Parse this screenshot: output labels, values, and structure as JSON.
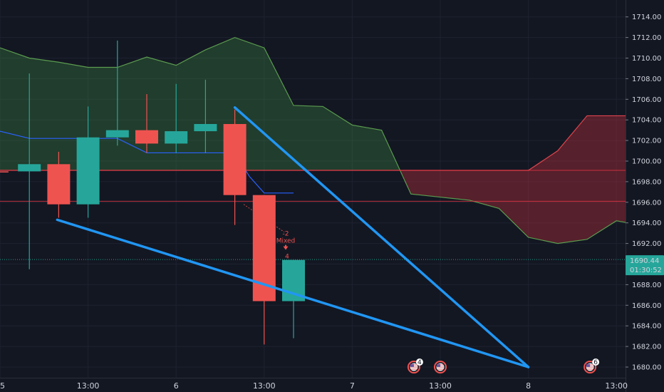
{
  "chart_data": {
    "type": "candlestick",
    "ylim": [
      1678.5,
      1715.8
    ],
    "y_ticks": [
      "1680.00",
      "1682.00",
      "1684.00",
      "1686.00",
      "1688.00",
      "1690.00",
      "1692.00",
      "1694.00",
      "1696.00",
      "1698.00",
      "1700.00",
      "1702.00",
      "1704.00",
      "1706.00",
      "1708.00",
      "1710.00",
      "1712.00",
      "1714.00"
    ],
    "x_ticks": [
      {
        "label": "5",
        "t": 0
      },
      {
        "label": "13:00",
        "t": 3
      },
      {
        "label": "6",
        "t": 6
      },
      {
        "label": "13:00",
        "t": 9
      },
      {
        "label": "7",
        "t": 12
      },
      {
        "label": "13:00",
        "t": 15
      },
      {
        "label": "8",
        "t": 18
      },
      {
        "label": "13:00",
        "t": 21
      }
    ],
    "x_range": [
      0,
      21.4
    ],
    "candles": [
      {
        "t": -0.1,
        "o": 1699.0,
        "h": 1700.5,
        "l": 1696.5,
        "c": 1698.9
      },
      {
        "t": 1,
        "o": 1699.0,
        "h": 1708.5,
        "l": 1689.5,
        "c": 1699.7
      },
      {
        "t": 2,
        "o": 1699.7,
        "h": 1700.9,
        "l": 1694.5,
        "c": 1695.8
      },
      {
        "t": 3,
        "o": 1695.8,
        "h": 1705.3,
        "l": 1694.5,
        "c": 1702.3
      },
      {
        "t": 4,
        "o": 1702.3,
        "h": 1711.7,
        "l": 1701.5,
        "c": 1703.0
      },
      {
        "t": 5,
        "o": 1703.0,
        "h": 1706.5,
        "l": 1700.8,
        "c": 1701.7
      },
      {
        "t": 6,
        "o": 1701.7,
        "h": 1707.5,
        "l": 1700.8,
        "c": 1702.9
      },
      {
        "t": 7,
        "o": 1702.9,
        "h": 1707.9,
        "l": 1700.8,
        "c": 1703.6
      },
      {
        "t": 8,
        "o": 1703.6,
        "h": 1705.0,
        "l": 1693.8,
        "c": 1696.7
      },
      {
        "t": 9,
        "o": 1696.7,
        "h": 1696.7,
        "l": 1682.2,
        "c": 1686.4
      },
      {
        "t": 10,
        "o": 1686.4,
        "h": 1690.4,
        "l": 1682.8,
        "c": 1690.4
      }
    ],
    "ichimoku_span_a": [
      {
        "t": 0,
        "v": 1711.0
      },
      {
        "t": 1,
        "v": 1710.0
      },
      {
        "t": 2,
        "v": 1709.6
      },
      {
        "t": 3,
        "v": 1709.1
      },
      {
        "t": 4,
        "v": 1709.1
      },
      {
        "t": 5,
        "v": 1710.1
      },
      {
        "t": 6,
        "v": 1709.3
      },
      {
        "t": 7,
        "v": 1710.8
      },
      {
        "t": 8,
        "v": 1712.0
      },
      {
        "t": 9,
        "v": 1711.0
      },
      {
        "t": 10,
        "v": 1705.4
      },
      {
        "t": 11,
        "v": 1705.3
      },
      {
        "t": 12,
        "v": 1703.5
      },
      {
        "t": 13,
        "v": 1703.0
      },
      {
        "t": 14,
        "v": 1696.8
      },
      {
        "t": 15,
        "v": 1696.5
      },
      {
        "t": 16,
        "v": 1696.2
      },
      {
        "t": 17,
        "v": 1695.4
      },
      {
        "t": 18,
        "v": 1692.6
      },
      {
        "t": 19,
        "v": 1692.0
      },
      {
        "t": 20,
        "v": 1692.4
      },
      {
        "t": 21,
        "v": 1694.2
      },
      {
        "t": 21.4,
        "v": 1694.0
      }
    ],
    "ichimoku_span_b": [
      {
        "t": 0,
        "v": 1699.1
      },
      {
        "t": 13,
        "v": 1699.1
      },
      {
        "t": 18,
        "v": 1699.1
      },
      {
        "t": 19,
        "v": 1701.0
      },
      {
        "t": 20,
        "v": 1704.4
      },
      {
        "t": 21.4,
        "v": 1704.4
      }
    ],
    "base_line": [
      {
        "t": 0,
        "v": 1702.9
      },
      {
        "t": 1,
        "v": 1702.2
      },
      {
        "t": 4,
        "v": 1702.2
      },
      {
        "t": 5,
        "v": 1700.8
      },
      {
        "t": 7,
        "v": 1700.8
      },
      {
        "t": 8,
        "v": 1700.8
      },
      {
        "t": 8.5,
        "v": 1698.5
      },
      {
        "t": 9,
        "v": 1696.9
      },
      {
        "t": 10,
        "v": 1696.9
      }
    ],
    "horizontal_lines": [
      {
        "v": 1699.1,
        "color": "#f23645"
      },
      {
        "v": 1696.1,
        "color": "#f23645"
      },
      {
        "v": 1690.44,
        "color": "#22ab94",
        "dotted": true
      }
    ],
    "trendlines": [
      {
        "t1": 1.95,
        "v1": 1694.3,
        "t2": 18,
        "v2": 1680.0,
        "color": "#2196f3"
      },
      {
        "t1": 8,
        "v1": 1705.2,
        "t2": 18,
        "v2": 1680.0,
        "color": "#2196f3"
      }
    ],
    "signal": {
      "t": 10,
      "v": 1692.0,
      "text": "Mixed",
      "sub": "-2",
      "arrow_label": "4"
    },
    "price_label": {
      "value": "1690.44",
      "countdown": "01:30:52"
    },
    "event_markers": [
      {
        "t": 14.1,
        "badge": "4"
      },
      {
        "t": 15,
        "badge": ""
      },
      {
        "t": 20.1,
        "badge": "6"
      }
    ],
    "colors": {
      "background": "#131722",
      "grid": "#1e2230",
      "bull": "#26a69a",
      "bear": "#ef5350",
      "cloud_bull": "#5b9c4f",
      "cloud_bear": "#e0454d",
      "axis_text": "#d1d4dc",
      "trend": "#2196f3"
    }
  }
}
